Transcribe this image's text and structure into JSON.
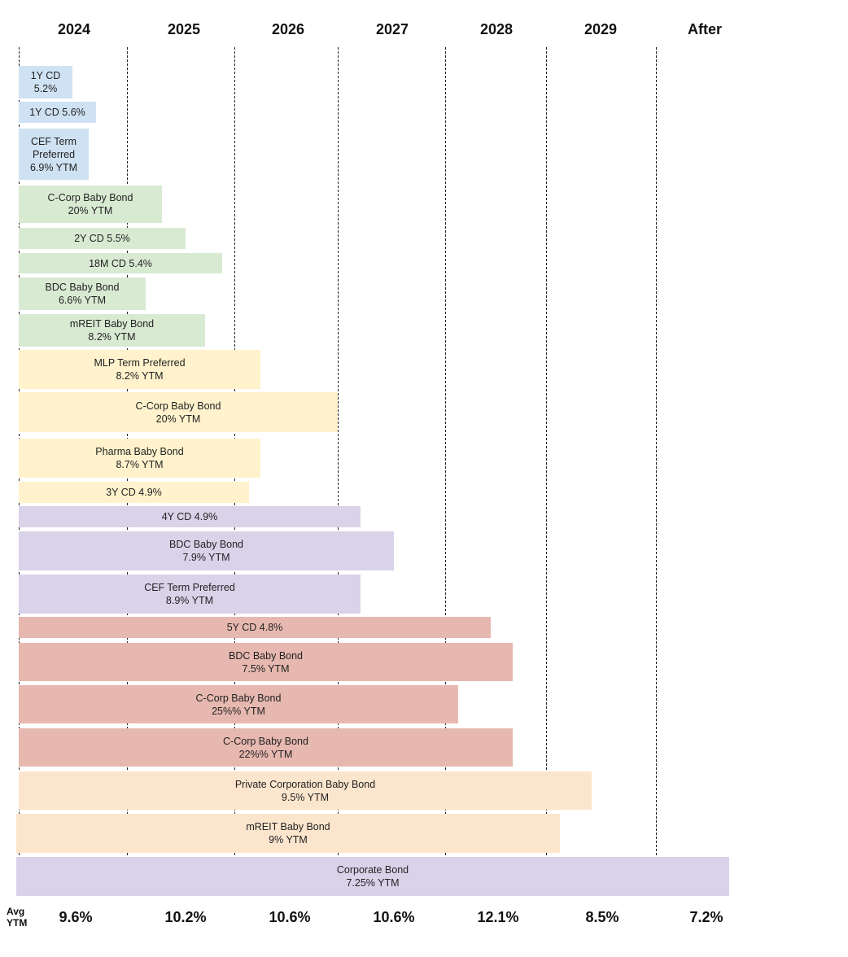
{
  "years": [
    "2024",
    "2025",
    "2026",
    "2027",
    "2028",
    "2029",
    "After"
  ],
  "avg_label": "Avg\nYTM",
  "avg_ytm": [
    "9.6%",
    "10.2%",
    "10.6%",
    "10.6%",
    "12.1%",
    "8.5%",
    "7.2%"
  ],
  "colors": {
    "blue": "#cfe2f3",
    "green": "#d9ead3",
    "yellow": "#fff2cc",
    "purple": "#d9d2e9",
    "red": "#e6b8af",
    "orange": "#fce5cd"
  },
  "bars": [
    {
      "label": "1Y CD\n5.2%",
      "color": "blue"
    },
    {
      "label": "1Y CD 5.6%",
      "color": "blue"
    },
    {
      "label": "CEF Term\nPreferred\n6.9% YTM",
      "color": "blue"
    },
    {
      "label": "C-Corp Baby Bond\n20% YTM",
      "color": "green"
    },
    {
      "label": "2Y CD 5.5%",
      "color": "green"
    },
    {
      "label": "18M CD 5.4%",
      "color": "green"
    },
    {
      "label": "BDC Baby Bond\n6.6% YTM",
      "color": "green"
    },
    {
      "label": "mREIT Baby Bond\n8.2% YTM",
      "color": "green"
    },
    {
      "label": "MLP Term Preferred\n8.2% YTM",
      "color": "yellow"
    },
    {
      "label": "C-Corp Baby Bond\n20% YTM",
      "color": "yellow"
    },
    {
      "label": "Pharma Baby Bond\n8.7% YTM",
      "color": "yellow"
    },
    {
      "label": "3Y CD 4.9%",
      "color": "yellow"
    },
    {
      "label": "4Y CD 4.9%",
      "color": "purple"
    },
    {
      "label": "BDC Baby Bond\n7.9% YTM",
      "color": "purple"
    },
    {
      "label": "CEF Term Preferred\n8.9% YTM",
      "color": "purple"
    },
    {
      "label": "5Y CD 4.8%",
      "color": "red"
    },
    {
      "label": "BDC Baby Bond\n7.5% YTM",
      "color": "red"
    },
    {
      "label": "C-Corp Baby Bond\n25%% YTM",
      "color": "red"
    },
    {
      "label": "C-Corp Baby Bond\n22%% YTM",
      "color": "red"
    },
    {
      "label": "Private Corporation Baby Bond\n9.5% YTM",
      "color": "orange"
    },
    {
      "label": "mREIT Baby Bond\n9% YTM",
      "color": "orange"
    },
    {
      "label": "Corporate Bond\n7.25% YTM",
      "color": "purple"
    }
  ]
}
